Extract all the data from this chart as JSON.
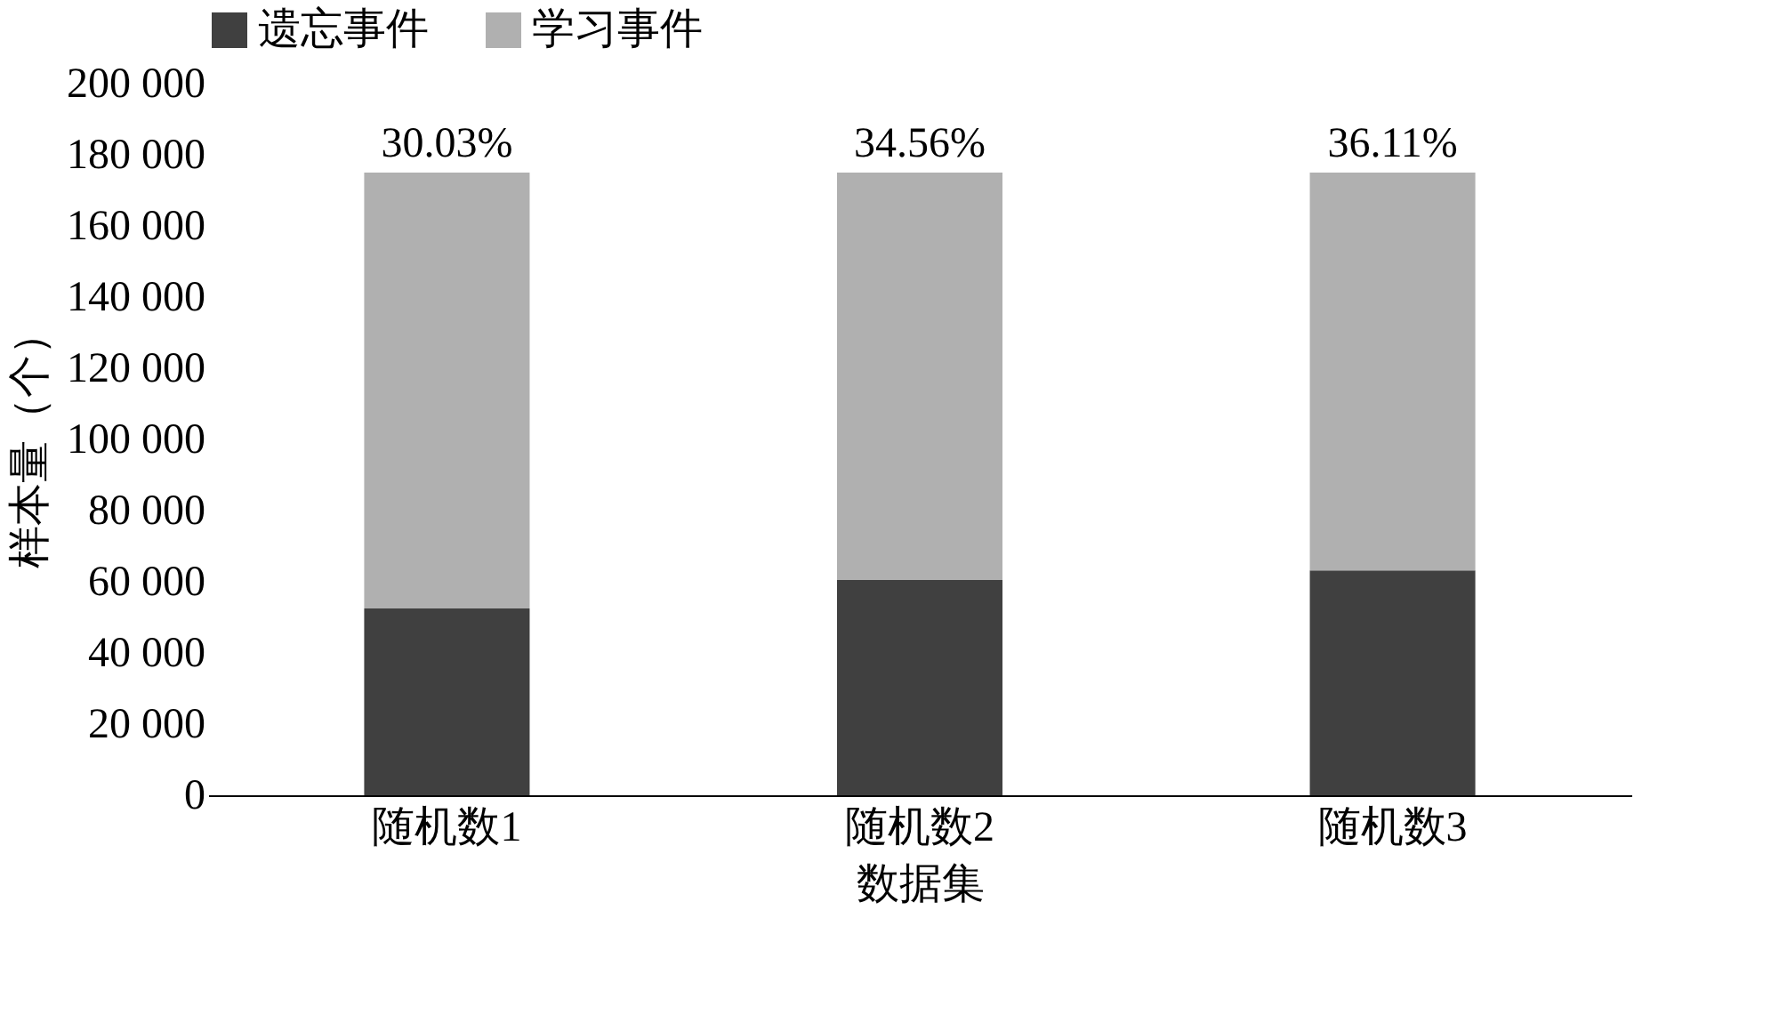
{
  "chart_data": {
    "type": "bar",
    "stacked": true,
    "categories": [
      "随机数1",
      "随机数2",
      "随机数3"
    ],
    "series": [
      {
        "name": "遗忘事件",
        "color": "#404040",
        "values": [
          52500,
          60500,
          63200
        ]
      },
      {
        "name": "学习事件",
        "color": "#b0b0b0",
        "values": [
          122500,
          114500,
          111800
        ]
      }
    ],
    "xlabel": "数据集",
    "ylabel": "样本量（个）",
    "ylim": [
      0,
      200000
    ],
    "yticks": [
      {
        "value": 0,
        "label": "0"
      },
      {
        "value": 20000,
        "label": "20 000"
      },
      {
        "value": 40000,
        "label": "40 000"
      },
      {
        "value": 60000,
        "label": "60 000"
      },
      {
        "value": 80000,
        "label": "80 000"
      },
      {
        "value": 100000,
        "label": "100 000"
      },
      {
        "value": 120000,
        "label": "120 000"
      },
      {
        "value": 140000,
        "label": "140 000"
      },
      {
        "value": 160000,
        "label": "160 000"
      },
      {
        "value": 180000,
        "label": "180 000"
      },
      {
        "value": 200000,
        "label": "200 000"
      }
    ],
    "annotations": [
      {
        "text": "30.03%",
        "x": "随机数1",
        "y": 175000
      },
      {
        "text": "34.56%",
        "x": "随机数2",
        "y": 175000
      },
      {
        "text": "36.11%",
        "x": "随机数3",
        "y": 175000
      }
    ],
    "legend": "top",
    "grid": false
  }
}
